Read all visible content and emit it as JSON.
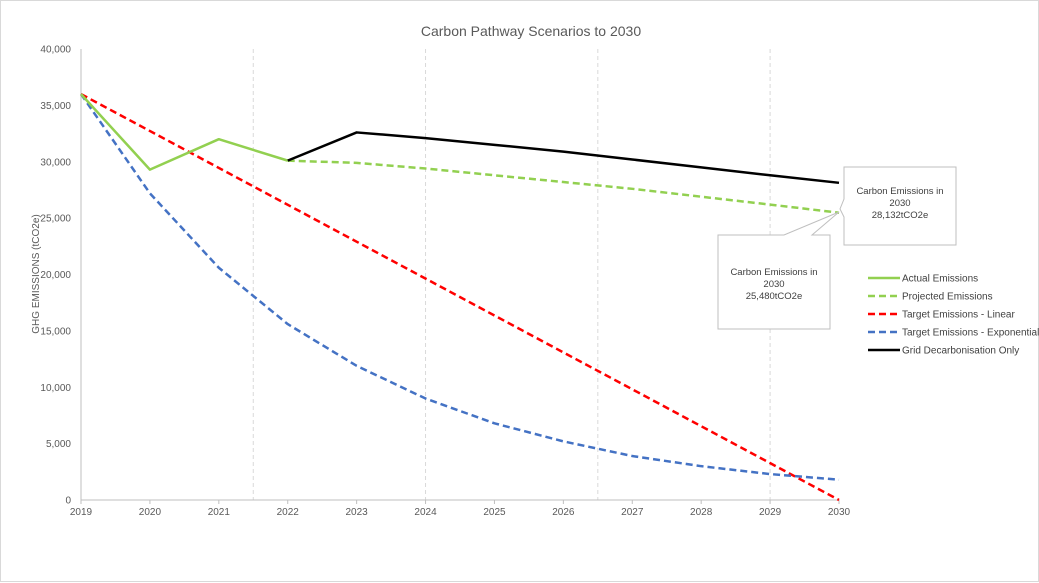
{
  "chart_data": {
    "type": "line",
    "title": "Carbon Pathway Scenarios to 2030",
    "xlabel": "",
    "ylabel": "GHG EMISSIONS (tCO2e)",
    "x": [
      "2019",
      "2020",
      "2021",
      "2022",
      "2023",
      "2024",
      "2025",
      "2026",
      "2027",
      "2028",
      "2029",
      "2030"
    ],
    "y_ticks": [
      "0",
      "5,000",
      "10,000",
      "15,000",
      "20,000",
      "25,000",
      "30,000",
      "35,000",
      "40,000"
    ],
    "ylim": [
      0,
      40000
    ],
    "legend_position": "right",
    "series": [
      {
        "name": "Actual Emissions",
        "color": "#92d050",
        "style": "solid",
        "x": [
          2019,
          2020,
          2021,
          2022
        ],
        "values": [
          36000,
          29300,
          32000,
          30100
        ]
      },
      {
        "name": "Projected Emissions",
        "color": "#92d050",
        "style": "dashed",
        "x": [
          2022,
          2023,
          2024,
          2025,
          2026,
          2027,
          2028,
          2029,
          2030
        ],
        "values": [
          30100,
          29900,
          29400,
          28800,
          28200,
          27600,
          26900,
          26200,
          25480
        ]
      },
      {
        "name": "Target Emissions - Linear",
        "color": "#ff0000",
        "style": "dashed",
        "x": [
          2019,
          2030
        ],
        "values": [
          36000,
          0
        ]
      },
      {
        "name": "Target Emissions - Exponential",
        "color": "#4472c4",
        "style": "dashed",
        "x": [
          2019,
          2020,
          2021,
          2022,
          2023,
          2024,
          2025,
          2026,
          2027,
          2028,
          2029,
          2030
        ],
        "values": [
          36000,
          27200,
          20600,
          15600,
          11900,
          9000,
          6800,
          5200,
          3900,
          3000,
          2300,
          1800
        ]
      },
      {
        "name": "Grid Decarbonisation Only",
        "color": "#000000",
        "style": "solid",
        "x": [
          2022,
          2023,
          2024,
          2025,
          2026,
          2027,
          2028,
          2029,
          2030
        ],
        "values": [
          30100,
          32600,
          32100,
          31500,
          30900,
          30200,
          29500,
          28800,
          28132
        ]
      }
    ],
    "vertical_dashed_gridlines_at": [
      2021.5,
      2024,
      2026.5,
      2029
    ],
    "annotations": [
      {
        "id": "grid",
        "lines": [
          "Carbon Emissions in",
          "2030",
          "28,132tCO2e"
        ],
        "x": 2030,
        "y": 28132
      },
      {
        "id": "projected",
        "lines": [
          "Carbon Emissions  in",
          "2030",
          "25,480tCO2e"
        ],
        "x": 2030,
        "y": 25480
      }
    ]
  }
}
